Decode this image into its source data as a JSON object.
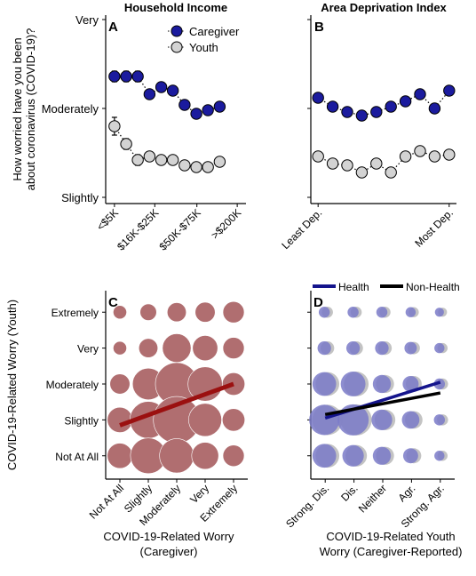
{
  "colors": {
    "caregiver": "#1b1b9e",
    "youth": "#d3d3d3",
    "bubble_red": "#b06e70",
    "regress_red": "#9b1010",
    "bubble_blue": "#7a7ac8",
    "bubble_gray": "#b8b8b8",
    "health": "#14148c",
    "nonhealth": "#000000"
  },
  "chart_data": [
    {
      "panel": "A",
      "type": "line",
      "title": "Household Income",
      "ylabel": "How worried have you been about coronavirus (COVID-19)?",
      "ylabel_lines": [
        "How worried have you been",
        "about coronavirus (COVID-19)?"
      ],
      "y_tick_labels": [
        "Very",
        "Moderately",
        "Slightly"
      ],
      "y_tick_values": [
        3,
        2,
        1
      ],
      "ylim": [
        1,
        3
      ],
      "x_tick_labels": [
        "<$5K",
        "$16K-$25K",
        "$50K-$75K",
        ">$200K"
      ],
      "x_tick_positions": [
        1,
        3.3,
        5.7,
        8
      ],
      "xlim": [
        0.5,
        8.5
      ],
      "legend": [
        "Caregiver",
        "Youth"
      ],
      "series": [
        {
          "name": "Caregiver",
          "x": [
            1,
            1.67,
            2.33,
            3,
            3.67,
            4.33,
            5,
            5.67,
            6.33,
            7
          ],
          "y": [
            2.36,
            2.36,
            2.36,
            2.16,
            2.24,
            2.2,
            2.04,
            1.94,
            1.98,
            2.02
          ],
          "err": [
            0.06,
            0.06,
            0.06,
            0.05,
            0.04,
            0.04,
            0.04,
            0.04,
            0.04,
            0.04
          ]
        },
        {
          "name": "Youth",
          "x": [
            1,
            1.67,
            2.33,
            3,
            3.67,
            4.33,
            5,
            5.67,
            6.33,
            7
          ],
          "y": [
            1.8,
            1.6,
            1.42,
            1.46,
            1.42,
            1.42,
            1.36,
            1.34,
            1.34,
            1.4
          ],
          "err": [
            0.1,
            0.06,
            0.06,
            0.05,
            0.04,
            0.03,
            0.03,
            0.03,
            0.03,
            0.03
          ]
        }
      ]
    },
    {
      "panel": "B",
      "type": "line",
      "title": "Area Deprivation Index",
      "ylim": [
        1,
        3
      ],
      "x_tick_labels": [
        "Least Dep.",
        "Most Dep."
      ],
      "x_tick_positions": [
        1,
        10
      ],
      "xlim": [
        0.5,
        10.5
      ],
      "series": [
        {
          "name": "Caregiver",
          "x": [
            1,
            2,
            3,
            4,
            5,
            6,
            7,
            8,
            9,
            10
          ],
          "y": [
            2.12,
            2.02,
            1.96,
            1.92,
            1.96,
            2.02,
            2.08,
            2.16,
            2.0,
            2.2
          ],
          "err": [
            0.04,
            0.04,
            0.04,
            0.04,
            0.04,
            0.04,
            0.04,
            0.05,
            0.05,
            0.05
          ]
        },
        {
          "name": "Youth",
          "x": [
            1,
            2,
            3,
            4,
            5,
            6,
            7,
            8,
            9,
            10
          ],
          "y": [
            1.46,
            1.38,
            1.36,
            1.28,
            1.38,
            1.28,
            1.46,
            1.52,
            1.46,
            1.48
          ],
          "err": [
            0.03,
            0.03,
            0.03,
            0.03,
            0.03,
            0.03,
            0.03,
            0.04,
            0.04,
            0.05
          ]
        }
      ]
    },
    {
      "panel": "C",
      "type": "scatter",
      "xlabel": "COVID-19-Related Worry (Caregiver)",
      "xlabel_lines": [
        "COVID-19-Related Worry",
        "(Caregiver)"
      ],
      "ylabel": "COVID-19-Related Worry (Youth)",
      "x_tick_labels": [
        "Not At All",
        "Slightly",
        "Moderately",
        "Very",
        "Extremely"
      ],
      "y_tick_labels": [
        "Extremely",
        "Very",
        "Moderately",
        "Slightly",
        "Not At All"
      ],
      "y_tick_values": [
        5,
        4,
        3,
        2,
        1
      ],
      "xlim": [
        0.5,
        5.5
      ],
      "ylim": [
        0.5,
        5.5
      ],
      "bubbles": [
        {
          "x": 1,
          "y": 5,
          "size": 0.1
        },
        {
          "x": 2,
          "y": 5,
          "size": 0.15
        },
        {
          "x": 3,
          "y": 5,
          "size": 0.2
        },
        {
          "x": 4,
          "y": 5,
          "size": 0.22
        },
        {
          "x": 5,
          "y": 5,
          "size": 0.25
        },
        {
          "x": 1,
          "y": 4,
          "size": 0.1
        },
        {
          "x": 2,
          "y": 4,
          "size": 0.2
        },
        {
          "x": 3,
          "y": 4,
          "size": 0.45
        },
        {
          "x": 4,
          "y": 4,
          "size": 0.35
        },
        {
          "x": 5,
          "y": 4,
          "size": 0.25
        },
        {
          "x": 1,
          "y": 3,
          "size": 0.22
        },
        {
          "x": 2,
          "y": 3,
          "size": 0.55
        },
        {
          "x": 3,
          "y": 3,
          "size": 1.0
        },
        {
          "x": 4,
          "y": 3,
          "size": 0.65
        },
        {
          "x": 5,
          "y": 3,
          "size": 0.28
        },
        {
          "x": 1,
          "y": 2,
          "size": 0.35
        },
        {
          "x": 2,
          "y": 2,
          "size": 0.75
        },
        {
          "x": 3,
          "y": 2,
          "size": 1.2
        },
        {
          "x": 4,
          "y": 2,
          "size": 0.6
        },
        {
          "x": 5,
          "y": 2,
          "size": 0.28
        },
        {
          "x": 1,
          "y": 1,
          "size": 0.35
        },
        {
          "x": 2,
          "y": 1,
          "size": 0.7
        },
        {
          "x": 3,
          "y": 1,
          "size": 0.65
        },
        {
          "x": 4,
          "y": 1,
          "size": 0.4
        },
        {
          "x": 5,
          "y": 1,
          "size": 0.25
        }
      ],
      "regression": {
        "x": [
          1,
          5
        ],
        "y": [
          1.85,
          3.0
        ]
      }
    },
    {
      "panel": "D",
      "type": "scatter",
      "xlabel": "COVID-19-Related Youth Worry (Caregiver-Reported)",
      "xlabel_lines": [
        "COVID-19-Related Youth",
        "Worry (Caregiver-Reported)"
      ],
      "x_tick_labels": [
        "Strong. Dis.",
        "Dis.",
        "Neither",
        "Agr.",
        "Strong. Agr."
      ],
      "xlim": [
        0.5,
        5.5
      ],
      "ylim": [
        0.5,
        5.5
      ],
      "legend": [
        "Health",
        "Non-Health"
      ],
      "bubbles": [
        {
          "x": 1,
          "y": 5,
          "size": 0.12
        },
        {
          "x": 2,
          "y": 5,
          "size": 0.12
        },
        {
          "x": 3,
          "y": 5,
          "size": 0.12
        },
        {
          "x": 4,
          "y": 5,
          "size": 0.1
        },
        {
          "x": 5,
          "y": 5,
          "size": 0.08
        },
        {
          "x": 1,
          "y": 4,
          "size": 0.18
        },
        {
          "x": 2,
          "y": 4,
          "size": 0.18
        },
        {
          "x": 3,
          "y": 4,
          "size": 0.18
        },
        {
          "x": 4,
          "y": 4,
          "size": 0.15
        },
        {
          "x": 5,
          "y": 4,
          "size": 0.1
        },
        {
          "x": 1,
          "y": 3,
          "size": 0.55
        },
        {
          "x": 2,
          "y": 3,
          "size": 0.6
        },
        {
          "x": 3,
          "y": 3,
          "size": 0.32
        },
        {
          "x": 4,
          "y": 3,
          "size": 0.25
        },
        {
          "x": 5,
          "y": 3,
          "size": 0.12
        },
        {
          "x": 1,
          "y": 2,
          "size": 0.9
        },
        {
          "x": 2,
          "y": 2,
          "size": 0.95
        },
        {
          "x": 3,
          "y": 2,
          "size": 0.42
        },
        {
          "x": 4,
          "y": 2,
          "size": 0.3
        },
        {
          "x": 5,
          "y": 2,
          "size": 0.12
        },
        {
          "x": 1,
          "y": 1,
          "size": 0.55
        },
        {
          "x": 2,
          "y": 1,
          "size": 0.45
        },
        {
          "x": 3,
          "y": 1,
          "size": 0.32
        },
        {
          "x": 4,
          "y": 1,
          "size": 0.22
        },
        {
          "x": 5,
          "y": 1,
          "size": 0.1
        }
      ],
      "lines": [
        {
          "name": "Health",
          "x": [
            1,
            5
          ],
          "y": [
            2.05,
            3.05
          ]
        },
        {
          "name": "Non-Health",
          "x": [
            1,
            5
          ],
          "y": [
            2.15,
            2.75
          ]
        }
      ]
    }
  ]
}
